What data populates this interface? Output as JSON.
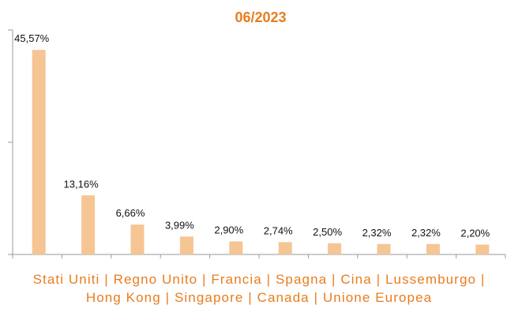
{
  "chart_data": {
    "type": "bar",
    "title": "06/2023",
    "categories": [
      "Stati Uniti",
      "Regno Unito",
      "Francia",
      "Spagna",
      "Cina",
      "Lussemburgo",
      "Hong Kong",
      "Singapore",
      "Canada",
      "Unione Europea"
    ],
    "category_separator": "|",
    "values": [
      45.57,
      13.16,
      6.66,
      3.99,
      2.9,
      2.74,
      2.5,
      2.32,
      2.32,
      2.2
    ],
    "value_labels": [
      "45,57%",
      "13,16%",
      "6,66%",
      "3,99%",
      "2,90%",
      "2,74%",
      "2,50%",
      "2,32%",
      "2,32%",
      "2,20%"
    ],
    "color": "#f6c594",
    "ylim": [
      0,
      50
    ],
    "yticks": [
      0,
      25,
      50
    ]
  }
}
